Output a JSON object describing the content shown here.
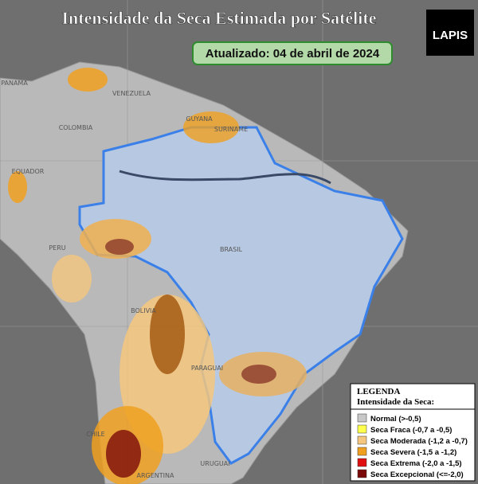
{
  "header": {
    "title": "Intensidade da Seca Estimada por Satélite",
    "updated": "Atualizado: 04 de abril de 2024",
    "logo": "LAPIS"
  },
  "map": {
    "labels": [
      "PANAMA",
      "VENEZUELA",
      "COLOMBIA",
      "GUYANA",
      "SURINAME",
      "EQUADOR",
      "PERU",
      "BRASIL",
      "BOLIVIA",
      "PARAGUAI",
      "CHILE",
      "ARGENTINA",
      "URUGUAI"
    ]
  },
  "legend": {
    "title": "LEGENDA",
    "subtitle": "Intensidade da Seca:",
    "items": [
      {
        "label": "Normal (>-0,5)",
        "color": "#c8c8c8"
      },
      {
        "label": "Seca Fraca (-0,7 a -0,5)",
        "color": "#ffff4d"
      },
      {
        "label": "Seca Moderada (-1,2 a -0,7)",
        "color": "#f5c77e"
      },
      {
        "label": "Seca Severa (-1,5 a -1,2)",
        "color": "#f0a020"
      },
      {
        "label": "Seca Extrema (-2,0 a -1,5)",
        "color": "#e01010"
      },
      {
        "label": "Seca Excepcional (<=-2,0)",
        "color": "#7a0a0a"
      }
    ]
  }
}
